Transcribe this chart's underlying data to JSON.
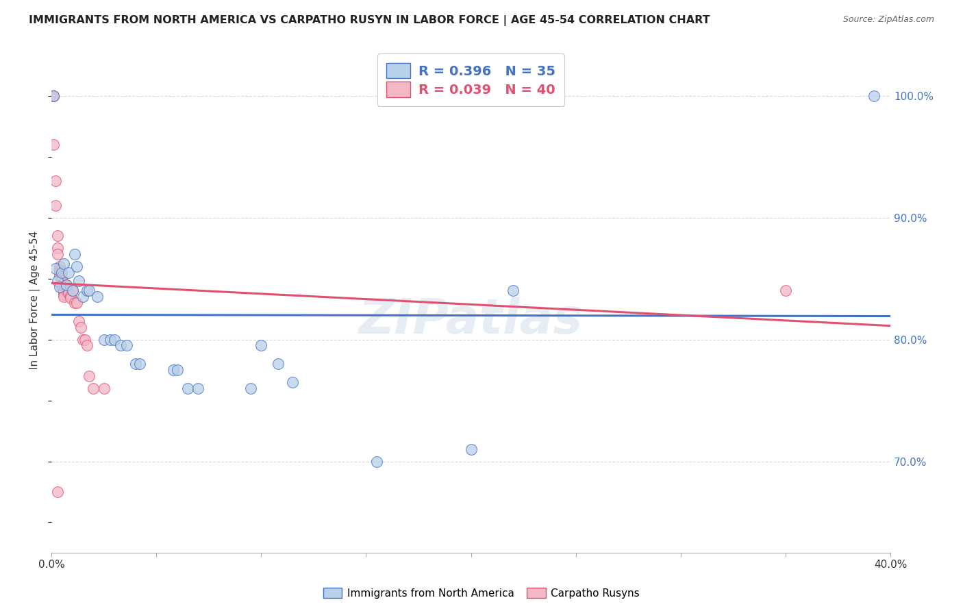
{
  "title": "IMMIGRANTS FROM NORTH AMERICA VS CARPATHO RUSYN IN LABOR FORCE | AGE 45-54 CORRELATION CHART",
  "source": "Source: ZipAtlas.com",
  "ylabel": "In Labor Force | Age 45-54",
  "ylabel_right_ticks": [
    "100.0%",
    "90.0%",
    "80.0%",
    "70.0%"
  ],
  "ylabel_right_values": [
    1.0,
    0.9,
    0.8,
    0.7
  ],
  "blue_R": 0.396,
  "blue_N": 35,
  "pink_R": 0.039,
  "pink_N": 40,
  "blue_color": "#b8d0e8",
  "pink_color": "#f2b8c6",
  "blue_line_color": "#4472C4",
  "pink_line_color": "#E05070",
  "blue_scatter": [
    [
      0.001,
      1.0
    ],
    [
      0.002,
      0.858
    ],
    [
      0.003,
      0.848
    ],
    [
      0.004,
      0.843
    ],
    [
      0.005,
      0.855
    ],
    [
      0.006,
      0.862
    ],
    [
      0.007,
      0.845
    ],
    [
      0.008,
      0.855
    ],
    [
      0.01,
      0.84
    ],
    [
      0.011,
      0.87
    ],
    [
      0.012,
      0.86
    ],
    [
      0.013,
      0.848
    ],
    [
      0.015,
      0.835
    ],
    [
      0.017,
      0.84
    ],
    [
      0.018,
      0.84
    ],
    [
      0.022,
      0.835
    ],
    [
      0.025,
      0.8
    ],
    [
      0.028,
      0.8
    ],
    [
      0.03,
      0.8
    ],
    [
      0.033,
      0.795
    ],
    [
      0.036,
      0.795
    ],
    [
      0.04,
      0.78
    ],
    [
      0.042,
      0.78
    ],
    [
      0.058,
      0.775
    ],
    [
      0.06,
      0.775
    ],
    [
      0.065,
      0.76
    ],
    [
      0.07,
      0.76
    ],
    [
      0.095,
      0.76
    ],
    [
      0.1,
      0.795
    ],
    [
      0.108,
      0.78
    ],
    [
      0.115,
      0.765
    ],
    [
      0.155,
      0.7
    ],
    [
      0.2,
      0.71
    ],
    [
      0.22,
      0.84
    ],
    [
      0.392,
      1.0
    ]
  ],
  "pink_scatter": [
    [
      0.001,
      1.0
    ],
    [
      0.001,
      1.0
    ],
    [
      0.001,
      0.96
    ],
    [
      0.002,
      0.93
    ],
    [
      0.002,
      0.91
    ],
    [
      0.003,
      0.885
    ],
    [
      0.003,
      0.875
    ],
    [
      0.003,
      0.87
    ],
    [
      0.004,
      0.86
    ],
    [
      0.004,
      0.857
    ],
    [
      0.004,
      0.855
    ],
    [
      0.004,
      0.852
    ],
    [
      0.005,
      0.85
    ],
    [
      0.005,
      0.848
    ],
    [
      0.005,
      0.845
    ],
    [
      0.005,
      0.843
    ],
    [
      0.006,
      0.841
    ],
    [
      0.006,
      0.839
    ],
    [
      0.006,
      0.837
    ],
    [
      0.006,
      0.835
    ],
    [
      0.007,
      0.845
    ],
    [
      0.007,
      0.843
    ],
    [
      0.007,
      0.84
    ],
    [
      0.008,
      0.84
    ],
    [
      0.008,
      0.838
    ],
    [
      0.009,
      0.836
    ],
    [
      0.009,
      0.834
    ],
    [
      0.01,
      0.84
    ],
    [
      0.011,
      0.83
    ],
    [
      0.012,
      0.83
    ],
    [
      0.013,
      0.815
    ],
    [
      0.014,
      0.81
    ],
    [
      0.015,
      0.8
    ],
    [
      0.016,
      0.8
    ],
    [
      0.017,
      0.795
    ],
    [
      0.018,
      0.77
    ],
    [
      0.02,
      0.76
    ],
    [
      0.025,
      0.76
    ],
    [
      0.35,
      0.84
    ],
    [
      0.003,
      0.675
    ]
  ],
  "xmin": 0.0,
  "xmax": 0.4,
  "ymin": 0.625,
  "ymax": 1.04,
  "watermark": "ZIPatlas",
  "background_color": "#ffffff",
  "grid_color": "#d8d8d8",
  "legend_labels": [
    "Immigrants from North America",
    "Carpatho Rusyns"
  ]
}
